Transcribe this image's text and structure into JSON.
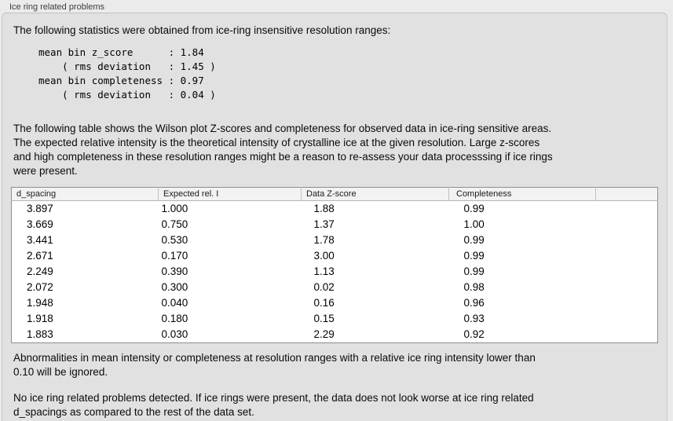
{
  "panel": {
    "title": "Ice ring related problems",
    "intro": "The following statistics were obtained from ice-ring insensitive resolution ranges:",
    "stats_block": "mean bin z_score      : 1.84\n    ( rms deviation   : 1.45 )\nmean bin completeness : 0.97\n    ( rms deviation   : 0.04 )",
    "table_description": "The following table shows the Wilson plot Z-scores and completeness for observed data in ice-ring sensitive areas.\nThe expected relative intensity is the theoretical intensity of crystalline ice at the given resolution. Large z-scores\nand high completeness in these resolution ranges might be a reason to re-assess your data processsing if ice rings\nwere present.",
    "note_ignored": "Abnormalities in mean intensity or completeness at resolution ranges with a relative ice ring intensity lower than\n0.10 will be ignored.",
    "conclusion": "No ice ring related problems detected. If ice rings were present, the data does not look worse at ice ring related\nd_spacings as compared to the rest of the data set."
  },
  "table": {
    "columns": [
      "d_spacing",
      "Expected rel. I",
      "Data Z-score",
      "Completeness"
    ],
    "rows": [
      [
        "3.897",
        "1.000",
        "1.88",
        "0.99"
      ],
      [
        "3.669",
        "0.750",
        "1.37",
        "1.00"
      ],
      [
        "3.441",
        "0.530",
        "1.78",
        "0.99"
      ],
      [
        "2.671",
        "0.170",
        "3.00",
        "0.99"
      ],
      [
        "2.249",
        "0.390",
        "1.13",
        "0.99"
      ],
      [
        "2.072",
        "0.300",
        "0.02",
        "0.98"
      ],
      [
        "1.948",
        "0.040",
        "0.16",
        "0.96"
      ],
      [
        "1.918",
        "0.180",
        "0.15",
        "0.93"
      ],
      [
        "1.883",
        "0.030",
        "2.29",
        "0.92"
      ]
    ]
  },
  "colors": {
    "page_bg": "#ebebeb",
    "panel_bg": "#e1e1e1",
    "panel_border": "#c9c9c9",
    "table_bg": "#ffffff",
    "table_border": "#8e8e8e",
    "header_bg": "#f2f2f2",
    "text": "#000000"
  }
}
